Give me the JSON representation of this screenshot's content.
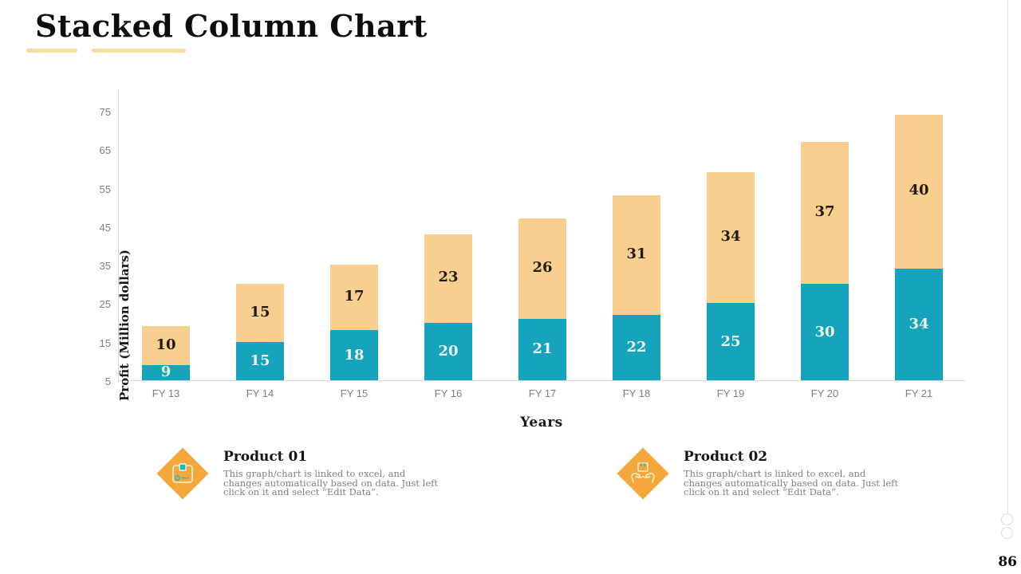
{
  "title": "Stacked Column Chart",
  "page_number": "86",
  "chart_data": {
    "type": "bar",
    "stacked": true,
    "xlabel": "Years",
    "ylabel": "Profit  (Million dollars)",
    "categories": [
      "FY 13",
      "FY 14",
      "FY 15",
      "FY 16",
      "FY 17",
      "FY 18",
      "FY 19",
      "FY 20",
      "FY 21"
    ],
    "series": [
      {
        "name": "Product 01",
        "color": "#15a4bc",
        "label_color": "#eff5ec",
        "values": [
          9,
          15,
          18,
          20,
          21,
          22,
          25,
          30,
          34
        ]
      },
      {
        "name": "Product 02",
        "color": "#f9cf8f",
        "label_color": "#241b10",
        "values": [
          10,
          15,
          17,
          23,
          26,
          31,
          34,
          37,
          40
        ]
      }
    ],
    "ylim": [
      5,
      75
    ],
    "yticks": [
      5,
      15,
      25,
      35,
      45,
      55,
      65,
      75
    ],
    "grid": false,
    "legend_position": "bottom",
    "axis_color": "#d9d9d9",
    "tick_label_color": "#7f7f7f"
  },
  "legend": {
    "items": [
      {
        "label": "Product 01",
        "icon": "package-box-icon",
        "accent_color": "#f4a83c",
        "description": "This graph/chart is linked to excel, and changes automatically based on data.  Just left click on it and select “Edit Data”."
      },
      {
        "label": "Product 02",
        "icon": "hands-holding-box-icon",
        "accent_color": "#f4a83c",
        "description": "This graph/chart is linked to excel, and changes automatically based on data.  Just left click on it and select “Edit Data”."
      }
    ]
  }
}
